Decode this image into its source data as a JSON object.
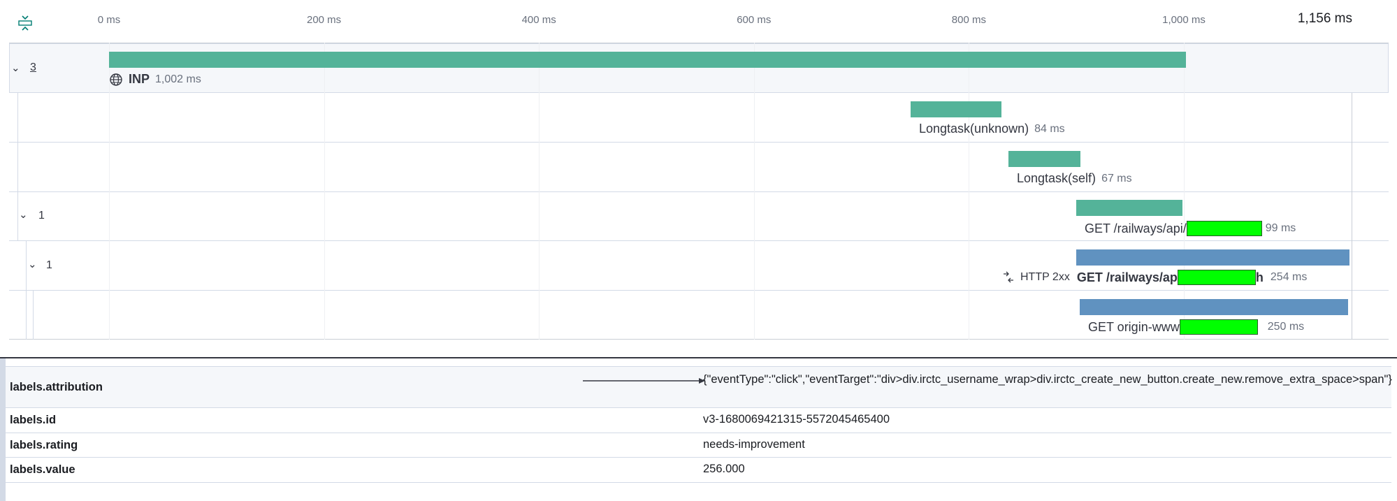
{
  "axis": {
    "ticks": [
      "0 ms",
      "200 ms",
      "400 ms",
      "600 ms",
      "800 ms",
      "1,000 ms"
    ],
    "tick_values": [
      0,
      200,
      400,
      600,
      800,
      1000
    ],
    "total": "1,156 ms",
    "total_value": 1156
  },
  "colors": {
    "green": "#54b399",
    "blue": "#6092c0",
    "redaction": "#00ff00"
  },
  "spans": [
    {
      "id": "inp",
      "icon": "globe-icon",
      "name": "INP",
      "duration": "1,002 ms",
      "start_ms": 0,
      "duration_ms": 1002,
      "color": "#54b399",
      "group_count": "3"
    },
    {
      "id": "longtask-unknown",
      "name": "Longtask(unknown)",
      "duration": "84 ms",
      "start_ms": 746,
      "duration_ms": 84,
      "color": "#54b399"
    },
    {
      "id": "longtask-self",
      "name": "Longtask(self)",
      "duration": "67 ms",
      "start_ms": 837,
      "duration_ms": 67,
      "color": "#54b399"
    },
    {
      "id": "get-api",
      "name": "GET /railways/api/",
      "duration": "99 ms",
      "start_ms": 900,
      "duration_ms": 99,
      "color": "#54b399",
      "group_count": "1"
    },
    {
      "id": "get-ap",
      "status": "HTTP 2xx",
      "name": "GET /railways/ap",
      "name_suffix": "h",
      "duration": "254 ms",
      "start_ms": 900,
      "duration_ms": 254,
      "color": "#6092c0",
      "group_count": "1"
    },
    {
      "id": "get-origin",
      "name": "GET origin-www",
      "duration": "250 ms",
      "start_ms": 903,
      "duration_ms": 250,
      "color": "#6092c0"
    }
  ],
  "metadata": [
    {
      "key": "labels.attribution",
      "value": "{\"eventType\":\"click\",\"eventTarget\":\"div>div.irctc_username_wrap>div.irctc_create_new_button.create_new.remove_extra_space>span\"}"
    },
    {
      "key": "labels.id",
      "value": "v3-1680069421315-5572045465400"
    },
    {
      "key": "labels.rating",
      "value": "needs-improvement"
    },
    {
      "key": "labels.value",
      "value": "256.000"
    }
  ]
}
